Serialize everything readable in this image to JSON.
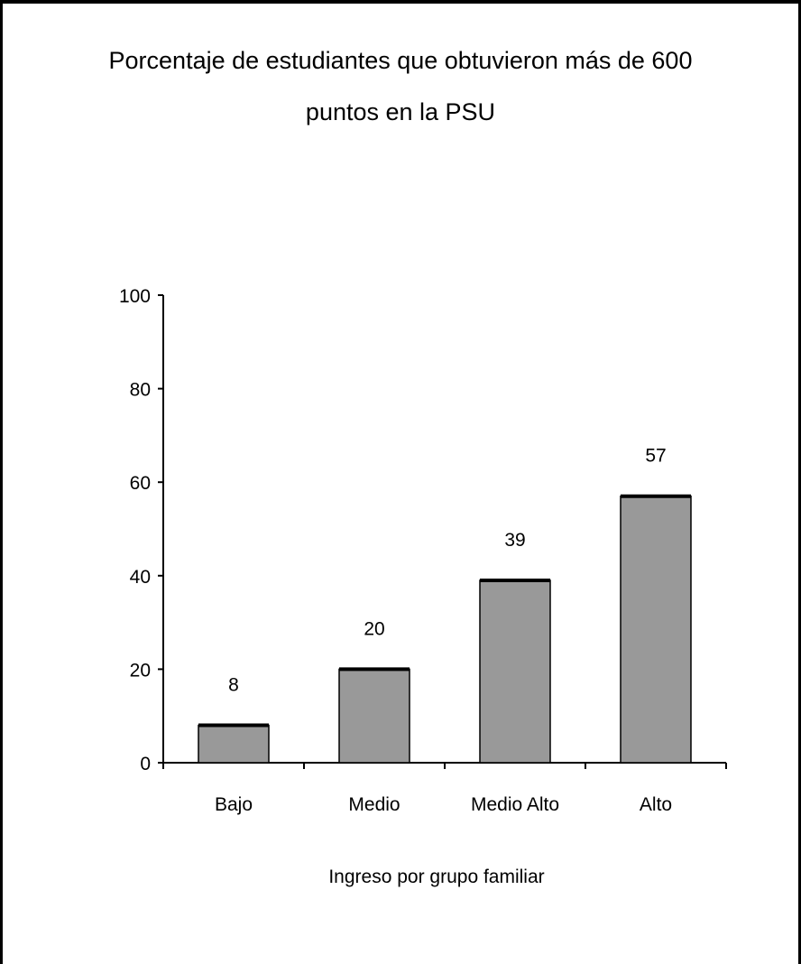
{
  "chart_data": {
    "type": "bar",
    "title_lines": [
      "Porcentaje de estudiantes que obtuvieron más de 600",
      "puntos en la PSU"
    ],
    "categories": [
      "Bajo",
      "Medio",
      "Medio Alto",
      "Alto"
    ],
    "values": [
      8,
      20,
      39,
      57
    ],
    "data_labels": [
      "8",
      "20",
      "39",
      "57"
    ],
    "xlabel": "Ingreso por grupo familiar",
    "ylabel": "",
    "ylim": [
      0,
      100
    ],
    "yticks": [
      0,
      20,
      40,
      60,
      80,
      100
    ],
    "grid": false,
    "legend": "none",
    "bar_color": "#999999",
    "bar_top_color": "#000000"
  }
}
